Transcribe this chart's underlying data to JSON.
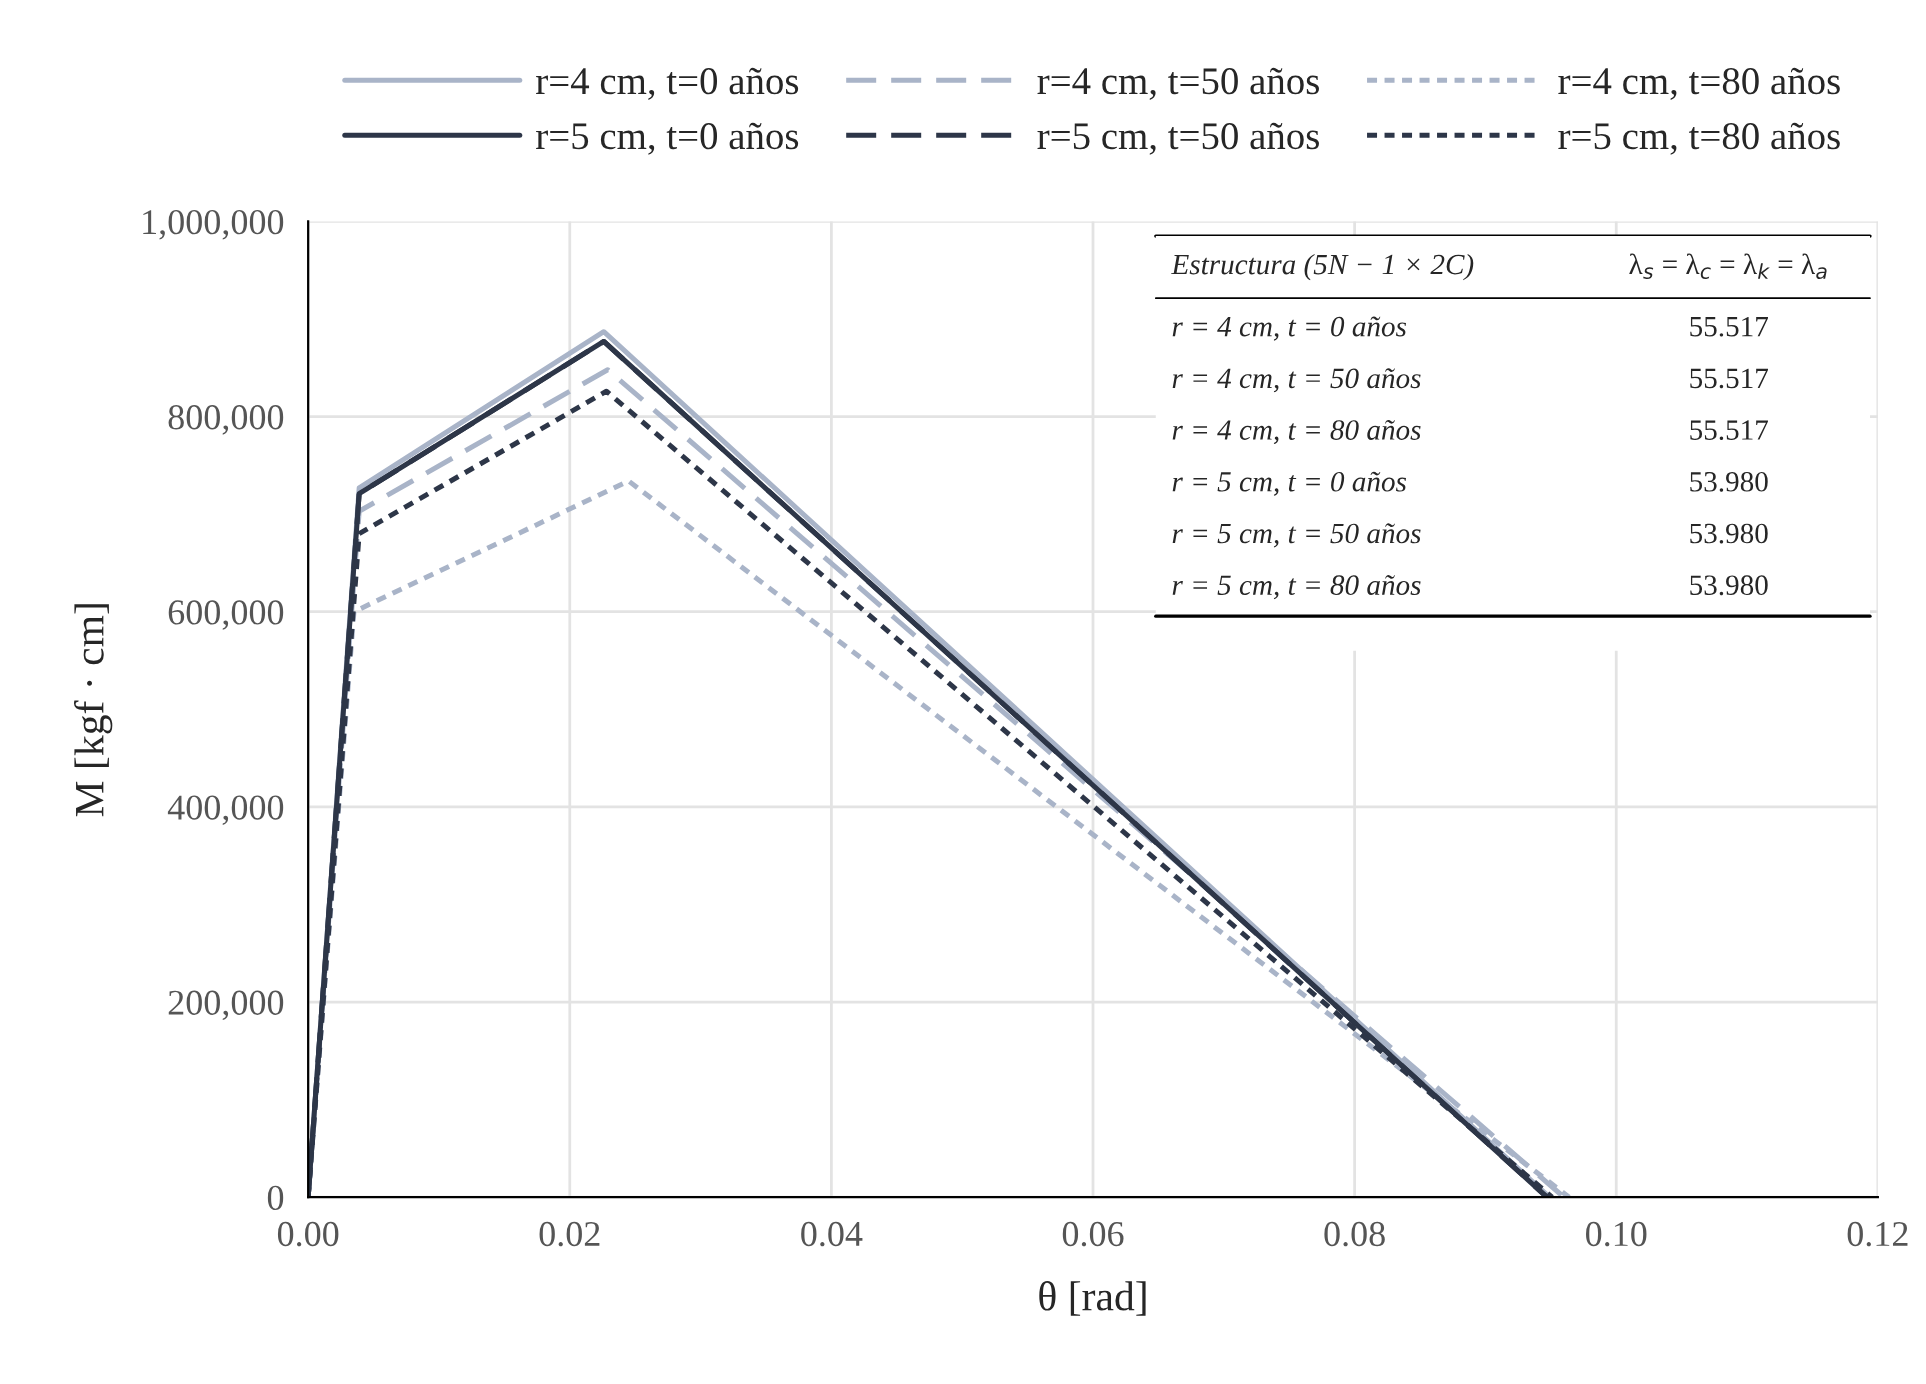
{
  "chart_data": {
    "type": "line",
    "xlabel": "θ [rad]",
    "ylabel": "M [kgf · cm]",
    "xlim": [
      0,
      0.12
    ],
    "xticks": [
      {
        "value": 0,
        "label": "0.00"
      },
      {
        "value": 0.02,
        "label": "0.02"
      },
      {
        "value": 0.04,
        "label": "0.04"
      },
      {
        "value": 0.06,
        "label": "0.06"
      },
      {
        "value": 0.08,
        "label": "0.08"
      },
      {
        "value": 0.1,
        "label": "0.10"
      },
      {
        "value": 0.12,
        "label": "0.12"
      }
    ],
    "ylim": [
      0,
      1000000
    ],
    "yticks": [
      0,
      {
        "value": 200000,
        "label": "200,000"
      },
      {
        "value": 400000,
        "label": "400,000"
      },
      {
        "value": 600000,
        "label": "600,000"
      },
      {
        "value": 800000,
        "label": "800,000"
      },
      {
        "value": 1000000,
        "label": "1,000,000"
      }
    ],
    "grid": true,
    "legend": "top",
    "marker": "none",
    "series": [
      {
        "name": "r=4 cm, t=0 años",
        "color": "#a9b4c8",
        "line_style": "solid",
        "x": [
          0,
          0.0039,
          0.0226,
          0.0949
        ],
        "values": [
          0,
          727000,
          887000,
          0
        ]
      },
      {
        "name": "r=4 cm, t=50 años",
        "color": "#a9b4c8",
        "line_style": "dashed",
        "x": [
          0,
          0.0039,
          0.0229,
          0.096
        ],
        "values": [
          0,
          703000,
          848000,
          0
        ]
      },
      {
        "name": "r=4 cm, t=80 años",
        "color": "#a9b4c8",
        "line_style": "dotted",
        "x": [
          0,
          0.0035,
          0.0245,
          0.0964
        ],
        "values": [
          0,
          600000,
          734000,
          0
        ]
      },
      {
        "name": "r=5 cm, t=0 años",
        "color": "#2d3648",
        "line_style": "solid",
        "x": [
          0,
          0.0039,
          0.0226,
          0.0947
        ],
        "values": [
          0,
          721000,
          877000,
          0
        ]
      },
      {
        "name": "r=5 cm, t=50 años",
        "color": "#2d3648",
        "line_style": "dashed",
        "x": [
          0,
          0.0039,
          0.0226,
          0.0947
        ],
        "values": [
          0,
          721000,
          877000,
          0
        ]
      },
      {
        "name": "r=5 cm, t=80 años",
        "color": "#2d3648",
        "line_style": "dotted",
        "x": [
          0,
          0.0039,
          0.0228,
          0.0951
        ],
        "values": [
          0,
          680000,
          826000,
          0
        ]
      }
    ],
    "annotations": [
      "Estructura (5N − 1 × 2C)",
      "λ$_{s}$ = λ$_{c}$ = λ$_{k}$ = λ$_{a}$",
      "r = 4 cm, t = 0 años",
      "55.517",
      "r = 4 cm, t = 50 años",
      "55.517",
      "r = 4 cm, t = 80 años",
      "55.517",
      "r = 5 cm, t = 0 años",
      "53.980",
      "r = 5 cm, t = 50 años",
      "53.980",
      "r = 5 cm, t = 80 años",
      "53.980"
    ]
  }
}
